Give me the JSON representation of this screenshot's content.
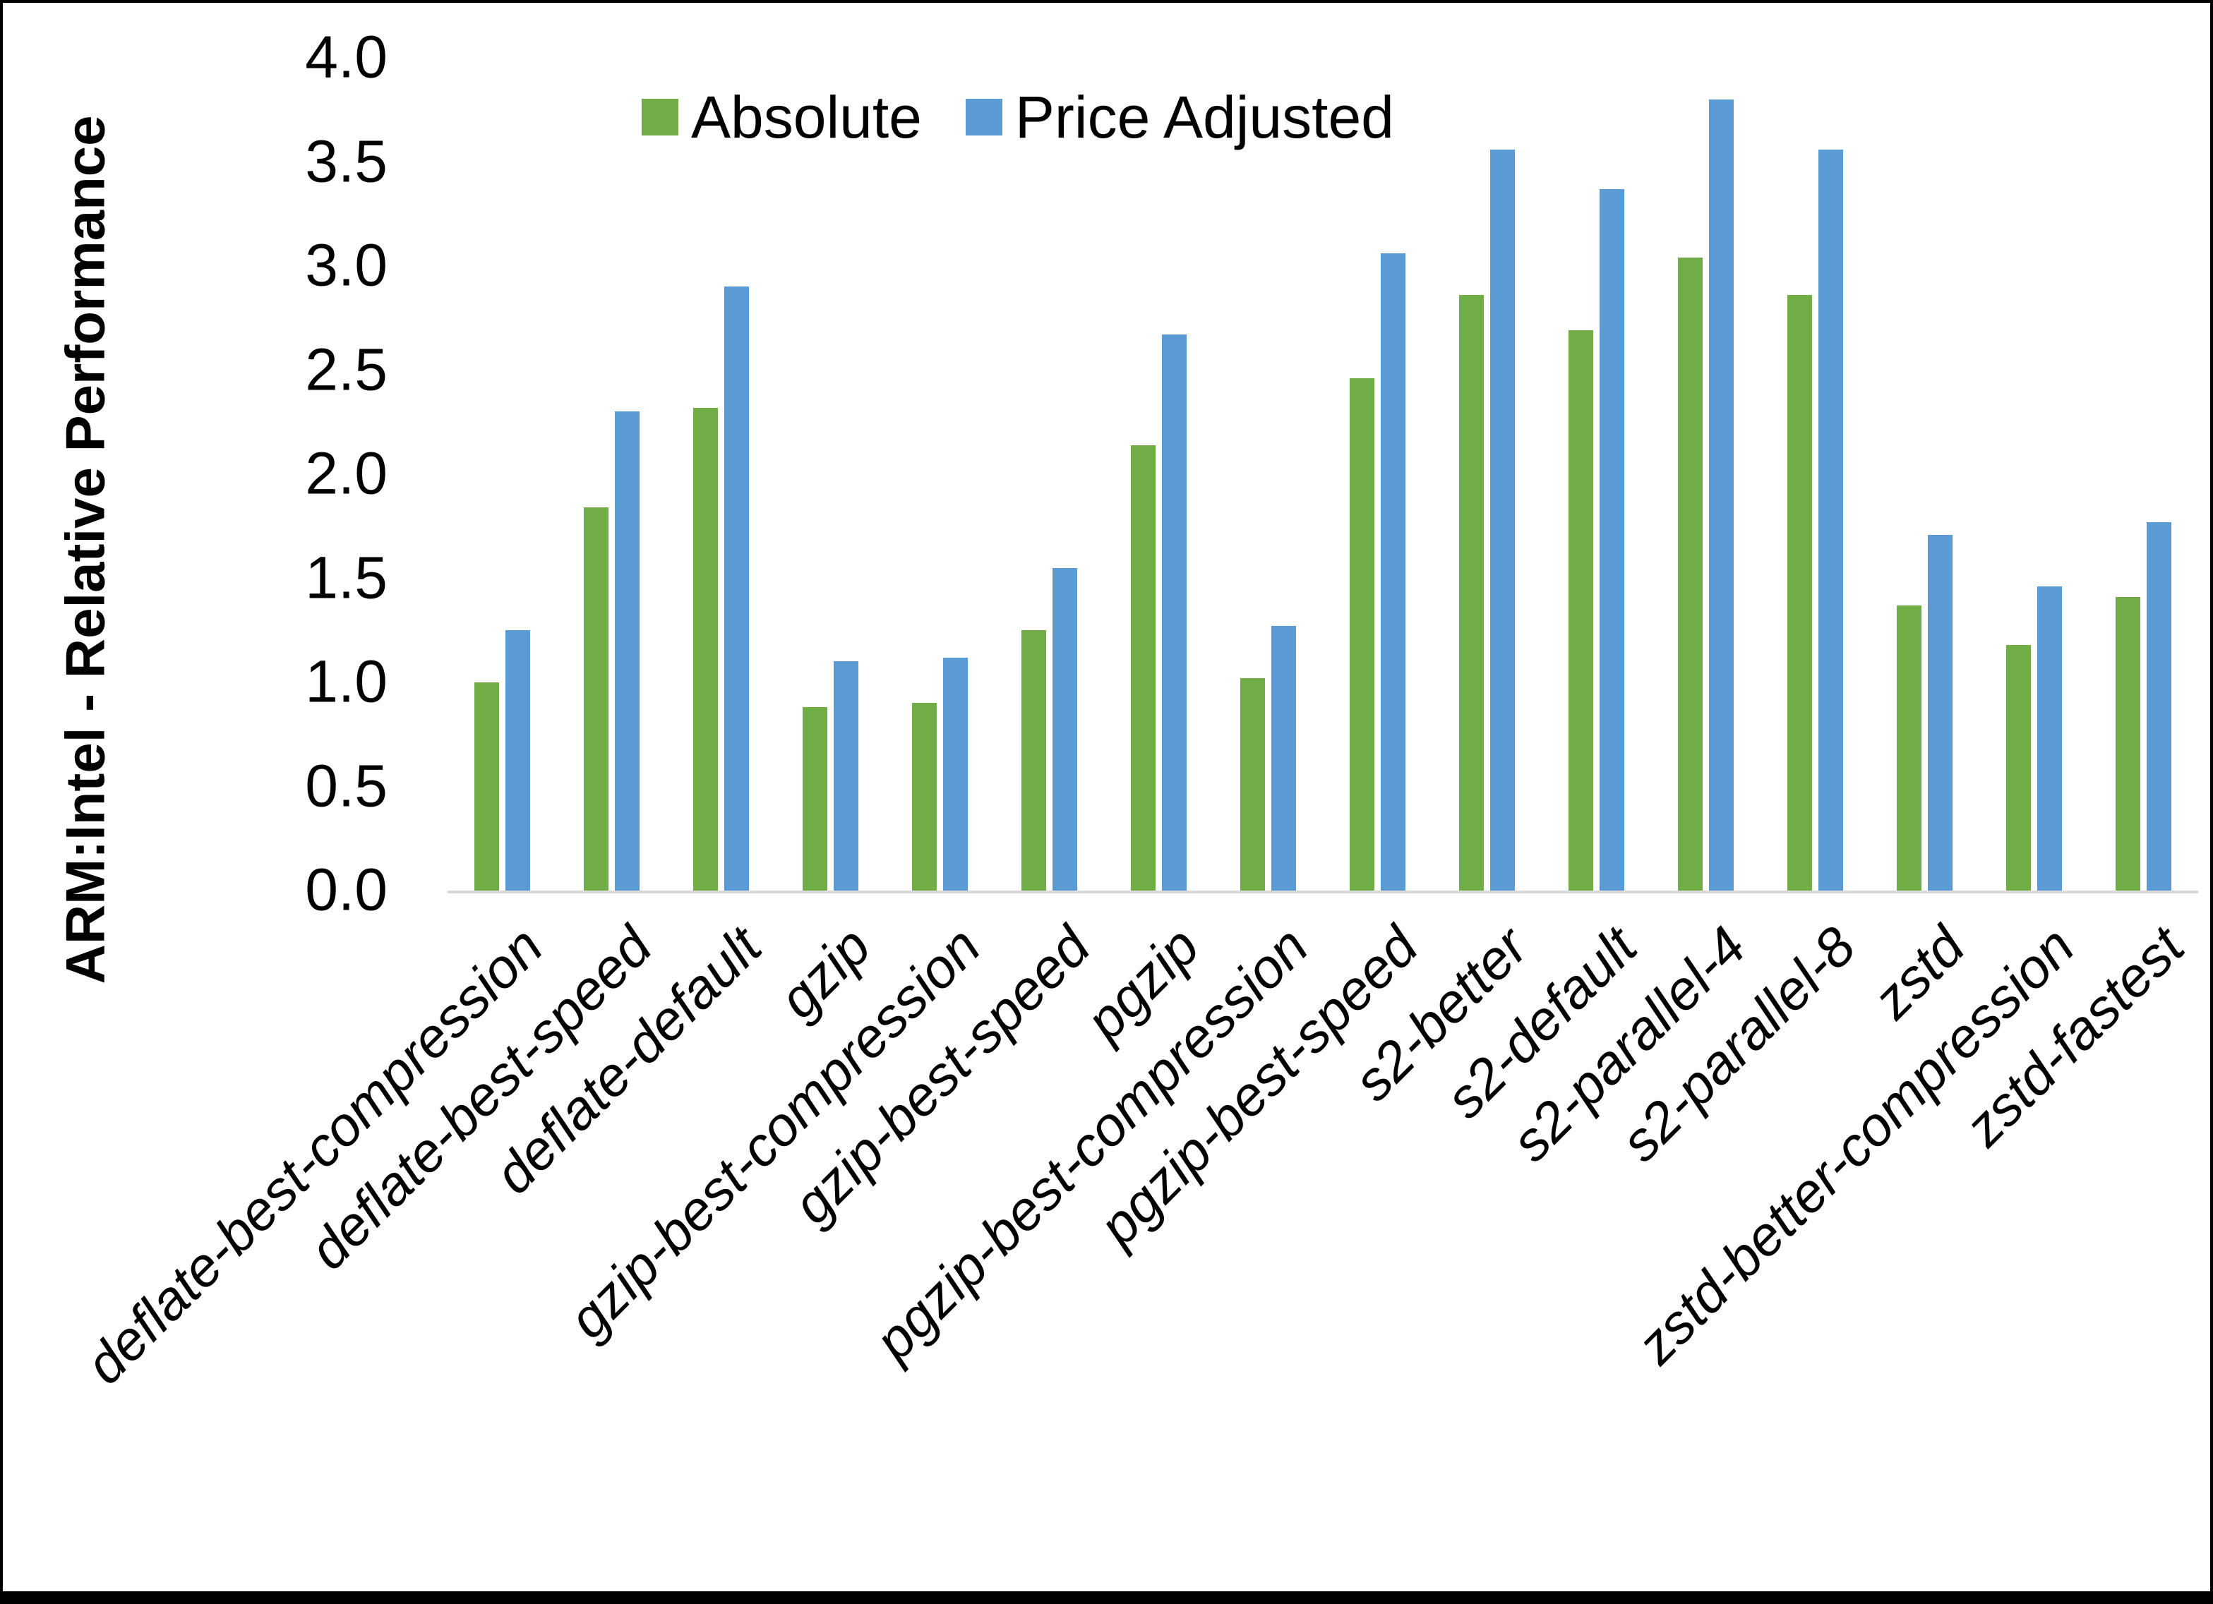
{
  "chart_data": {
    "type": "bar",
    "title": "",
    "ylabel": "ARM:Intel - Relative Performance",
    "xlabel": "",
    "ylim": [
      0,
      4
    ],
    "ytick_step": 0.5,
    "grid": false,
    "legend_position": "top",
    "axis_line_color": "#d9d9d9",
    "categories": [
      "deflate-best-compression",
      "deflate-best-speed",
      "deflate-default",
      "gzip",
      "gzip-best-compression",
      "gzip-best-speed",
      "pgzip",
      "pgzip-best-compression",
      "pgzip-best-speed",
      "s2-better",
      "s2-default",
      "s2-parallel-4",
      "s2-parallel-8",
      "zstd",
      "zstd-better-compression",
      "zstd-fastest"
    ],
    "series": [
      {
        "name": "Absolute",
        "color": "#70AD47",
        "values": [
          1.0,
          1.84,
          2.32,
          0.88,
          0.9,
          1.25,
          2.14,
          1.02,
          2.46,
          2.86,
          2.69,
          3.04,
          2.86,
          1.37,
          1.18,
          1.41
        ]
      },
      {
        "name": "Price Adjusted",
        "color": "#5B9BD5",
        "values": [
          1.25,
          2.3,
          2.9,
          1.1,
          1.12,
          1.55,
          2.67,
          1.27,
          3.06,
          3.56,
          3.37,
          3.8,
          3.56,
          1.71,
          1.46,
          1.77
        ]
      }
    ]
  }
}
